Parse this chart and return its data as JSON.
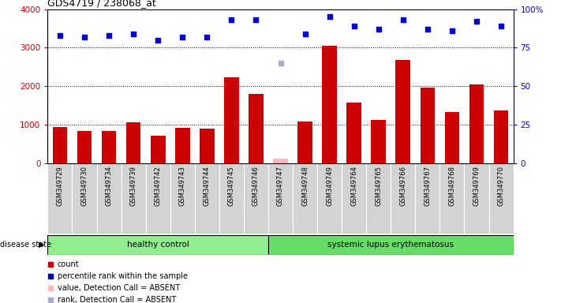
{
  "title": "GDS4719 / 238068_at",
  "samples": [
    "GSM349729",
    "GSM349730",
    "GSM349734",
    "GSM349739",
    "GSM349742",
    "GSM349743",
    "GSM349744",
    "GSM349745",
    "GSM349746",
    "GSM349747",
    "GSM349748",
    "GSM349749",
    "GSM349764",
    "GSM349765",
    "GSM349766",
    "GSM349767",
    "GSM349768",
    "GSM349769",
    "GSM349770"
  ],
  "counts": [
    950,
    850,
    850,
    1070,
    720,
    930,
    900,
    2230,
    1800,
    120,
    1080,
    3060,
    1580,
    1130,
    2680,
    1960,
    1330,
    2040,
    1370
  ],
  "percentile_ranks_pct": [
    83,
    82,
    83,
    84,
    80,
    82,
    82,
    93,
    93,
    65,
    84,
    95,
    89,
    87,
    93,
    87,
    86,
    92,
    89
  ],
  "absent_value_idx": [
    9
  ],
  "absent_rank_idx": [
    9
  ],
  "healthy_control_count": 9,
  "disease_label": "healthy control",
  "disease_label2": "systemic lupus erythematosus",
  "disease_state_label": "disease state",
  "bar_color": "#CC0000",
  "absent_bar_color": "#FFB6C1",
  "dot_color": "#0000CC",
  "absent_dot_color": "#AAAACC",
  "ylim_left": [
    0,
    4000
  ],
  "ylim_right": [
    0,
    100
  ],
  "yticks_left": [
    0,
    1000,
    2000,
    3000,
    4000
  ],
  "ytick_labels_left": [
    "0",
    "1000",
    "2000",
    "3000",
    "4000"
  ],
  "ytick_labels_right": [
    "0",
    "25",
    "50",
    "75",
    "100%"
  ],
  "legend_items": [
    {
      "label": "count",
      "color": "#CC0000",
      "marker": "s"
    },
    {
      "label": "percentile rank within the sample",
      "color": "#0000CC",
      "marker": "s"
    },
    {
      "label": "value, Detection Call = ABSENT",
      "color": "#FFB6C1",
      "marker": "s"
    },
    {
      "label": "rank, Detection Call = ABSENT",
      "color": "#AAAACC",
      "marker": "s"
    }
  ],
  "healthy_bg": "#90EE90",
  "lupus_bg": "#66DD66",
  "tick_bg": "#D3D3D3",
  "fig_width": 7.11,
  "fig_height": 3.84,
  "dpi": 100
}
